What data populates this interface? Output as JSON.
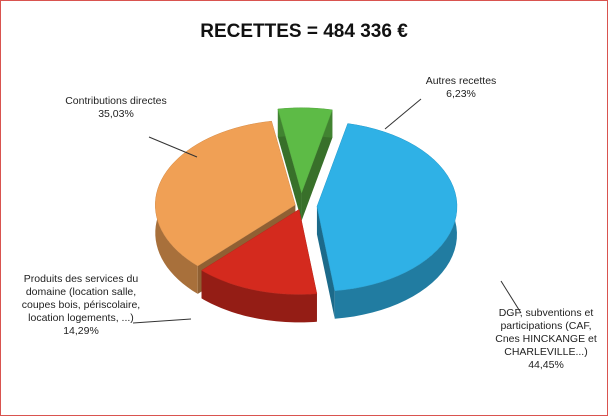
{
  "chart_data": {
    "type": "pie3d",
    "title": "RECETTES = 484 336 €",
    "categories": [
      "Autres recettes",
      "DGF, subventions et participations (CAF, Cnes HINCKANGE et CHARLEVILLE...)",
      "Produits des services du domaine (location salle, coupes bois, périscolaire, location logements, ...)",
      "Contributions directes"
    ],
    "values": [
      6.23,
      44.45,
      14.29,
      35.03
    ],
    "value_labels": [
      "6,23%",
      "44,45%",
      "14,29%",
      "35,03%"
    ],
    "colors": [
      "#5dbb46",
      "#2fb1e6",
      "#d42a1e",
      "#f0a055"
    ]
  }
}
